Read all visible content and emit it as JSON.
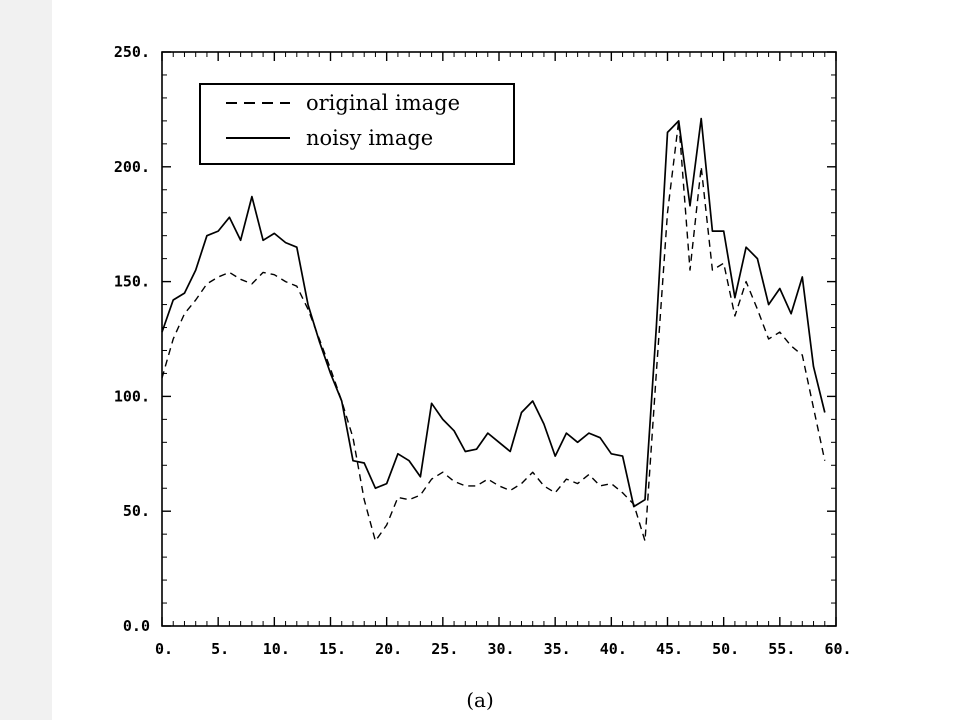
{
  "chart_data": {
    "type": "line",
    "title": "",
    "xlabel": "",
    "ylabel": "",
    "xlim": [
      0,
      60
    ],
    "ylim": [
      0,
      250
    ],
    "x_ticks": [
      "0.",
      "5.",
      "10.",
      "15.",
      "20.",
      "25.",
      "30.",
      "35.",
      "40.",
      "45.",
      "50.",
      "55.",
      "60."
    ],
    "y_ticks": [
      "0.0",
      "50.",
      "100.",
      "150.",
      "200.",
      "250."
    ],
    "x_tick_values": [
      0,
      5,
      10,
      15,
      20,
      25,
      30,
      35,
      40,
      45,
      50,
      55,
      60
    ],
    "y_tick_values": [
      0,
      50,
      100,
      150,
      200,
      250
    ],
    "grid": false,
    "legend_position": "top-left",
    "series": [
      {
        "name": "original image",
        "style": "dashed",
        "x": [
          0,
          1,
          2,
          3,
          4,
          5,
          6,
          7,
          8,
          9,
          10,
          11,
          12,
          13,
          14,
          15,
          16,
          17,
          18,
          19,
          20,
          21,
          22,
          23,
          24,
          25,
          26,
          27,
          28,
          29,
          30,
          31,
          32,
          33,
          34,
          35,
          36,
          37,
          38,
          39,
          40,
          41,
          42,
          43,
          44,
          45,
          46,
          47,
          48,
          49,
          50,
          51,
          52,
          53,
          54,
          55,
          56,
          57,
          58,
          59
        ],
        "values": [
          108,
          125,
          136,
          142,
          149,
          152,
          154,
          151,
          149,
          154,
          153,
          150,
          148,
          138,
          125,
          112,
          98,
          82,
          55,
          37,
          44,
          56,
          55,
          57,
          64,
          67,
          63,
          61,
          61,
          64,
          61,
          59,
          62,
          67,
          61,
          58,
          64,
          62,
          66,
          61,
          62,
          58,
          53,
          37,
          110,
          180,
          220,
          155,
          200,
          155,
          158,
          135,
          150,
          138,
          125,
          128,
          122,
          118,
          95,
          72
        ]
      },
      {
        "name": "noisy image",
        "style": "solid",
        "x": [
          0,
          1,
          2,
          3,
          4,
          5,
          6,
          7,
          8,
          9,
          10,
          11,
          12,
          13,
          14,
          15,
          16,
          17,
          18,
          19,
          20,
          21,
          22,
          23,
          24,
          25,
          26,
          27,
          28,
          29,
          30,
          31,
          32,
          33,
          34,
          35,
          36,
          37,
          38,
          39,
          40,
          41,
          42,
          43,
          44,
          45,
          46,
          47,
          48,
          49,
          50,
          51,
          52,
          53,
          54,
          55,
          56,
          57,
          58,
          59
        ],
        "values": [
          128,
          142,
          145,
          155,
          170,
          172,
          178,
          168,
          187,
          168,
          171,
          167,
          165,
          140,
          124,
          110,
          98,
          72,
          71,
          60,
          62,
          75,
          72,
          65,
          97,
          90,
          85,
          76,
          77,
          84,
          80,
          76,
          93,
          98,
          88,
          74,
          84,
          80,
          84,
          82,
          75,
          74,
          52,
          55,
          130,
          215,
          220,
          183,
          221,
          172,
          172,
          143,
          165,
          160,
          140,
          147,
          136,
          152,
          113,
          93
        ]
      }
    ]
  },
  "caption": "(a)"
}
